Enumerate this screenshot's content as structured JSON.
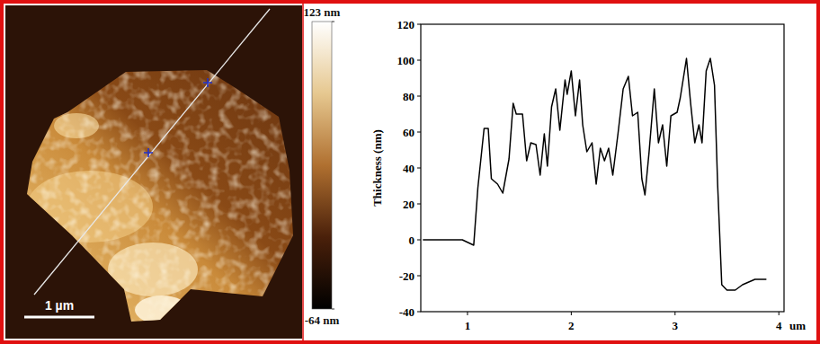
{
  "afm_image": {
    "scale_bar": {
      "label": "1 µm"
    },
    "color_bar": {
      "range": [
        -64,
        123
      ],
      "ticks": [
        {
          "value": -64,
          "label": "-64 nm"
        },
        {
          "value": 123,
          "label": "123 nm"
        }
      ]
    }
  },
  "chart_data": {
    "type": "line",
    "y_label": "Thickness (nm)",
    "x_label": "um",
    "color": "#000000",
    "grid": false,
    "x": [
      0.57,
      0.95,
      1.06,
      1.1,
      1.16,
      1.2,
      1.23,
      1.29,
      1.34,
      1.4,
      1.44,
      1.47,
      1.53,
      1.57,
      1.61,
      1.66,
      1.7,
      1.74,
      1.77,
      1.81,
      1.85,
      1.89,
      1.94,
      1.96,
      2.0,
      2.04,
      2.08,
      2.11,
      2.15,
      2.2,
      2.24,
      2.28,
      2.32,
      2.36,
      2.4,
      2.45,
      2.5,
      2.55,
      2.59,
      2.64,
      2.68,
      2.71,
      2.75,
      2.8,
      2.84,
      2.88,
      2.92,
      2.96,
      3.02,
      3.05,
      3.11,
      3.15,
      3.19,
      3.23,
      3.26,
      3.3,
      3.34,
      3.38,
      3.41,
      3.45,
      3.5,
      3.58,
      3.65,
      3.77,
      3.88
    ],
    "values": [
      0,
      0,
      -3,
      29,
      62,
      62,
      34,
      31,
      26,
      45,
      76,
      70,
      70,
      44,
      54,
      53,
      36,
      59,
      41,
      74,
      84,
      61,
      89,
      81,
      94,
      69,
      89,
      64,
      49,
      54,
      31,
      51,
      44,
      51,
      36,
      59,
      84,
      91,
      69,
      71,
      34,
      25,
      49,
      84,
      54,
      64,
      41,
      69,
      71,
      79,
      101,
      76,
      54,
      64,
      54,
      94,
      101,
      86,
      31,
      -25,
      -28,
      -28,
      -25,
      -22,
      -22
    ],
    "xlim": [
      0.55,
      4.05
    ],
    "xticks": [
      1,
      2,
      3,
      4
    ],
    "ylim": [
      -40,
      120
    ],
    "yticks": [
      -40,
      -20,
      0,
      20,
      40,
      60,
      80,
      100,
      120
    ]
  }
}
